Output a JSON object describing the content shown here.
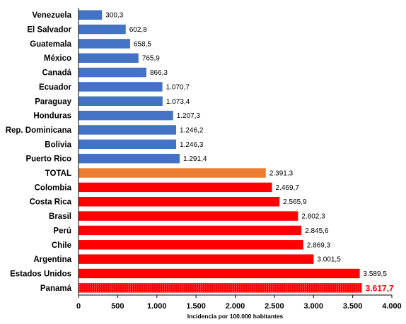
{
  "chart_data": {
    "type": "bar",
    "orientation": "horizontal",
    "categories": [
      "Venezuela",
      "El Salvador",
      "Guatemala",
      "México",
      "Canadá",
      "Ecuador",
      "Paraguay",
      "Honduras",
      "Rep. Dominicana",
      "Bolivia",
      "Puerto Rico",
      "TOTAL",
      "Colombia",
      "Costa Rica",
      "Brasil",
      "Perú",
      "Chile",
      "Argentina",
      "Estados Unidos",
      "Panamá"
    ],
    "values": [
      300.3,
      602.8,
      658.5,
      765.9,
      866.3,
      1070.7,
      1073.4,
      1207.3,
      1246.2,
      1246.3,
      1291.4,
      2391.3,
      2469.7,
      2565.9,
      2802.3,
      2845.6,
      2869.3,
      3001.5,
      3589.5,
      3617.7
    ],
    "value_labels": [
      "300,3",
      "602,8",
      "658,5",
      "765,9",
      "866,3",
      "1.070,7",
      "1.073,4",
      "1.207,3",
      "1.246,2",
      "1.246,3",
      "1.291,4",
      "2.391,3",
      "2.469,7",
      "2.565,9",
      "2.802,3",
      "2.845,6",
      "2.869,3",
      "3.001,5",
      "3.589,5",
      "3.617,7"
    ],
    "bar_colors": [
      "#4472c4",
      "#4472c4",
      "#4472c4",
      "#4472c4",
      "#4472c4",
      "#4472c4",
      "#4472c4",
      "#4472c4",
      "#4472c4",
      "#4472c4",
      "#4472c4",
      "#ed7d31",
      "#ff0000",
      "#ff0000",
      "#ff0000",
      "#ff0000",
      "#ff0000",
      "#ff0000",
      "#ff0000",
      "#ff0000"
    ],
    "highlight": "Panamá",
    "xlabel": "Incidencia por 100.000 habitantes",
    "ylabel": "",
    "xlim": [
      0,
      4000
    ],
    "xticks": [
      0,
      500,
      1000,
      1500,
      2000,
      2500,
      3000,
      3500,
      4000
    ],
    "xtick_labels": [
      "0",
      "500",
      "1.000",
      "1.500",
      "2.000",
      "2.500",
      "3.000",
      "3.500",
      "4.000"
    ],
    "grid": false,
    "legend": false
  }
}
